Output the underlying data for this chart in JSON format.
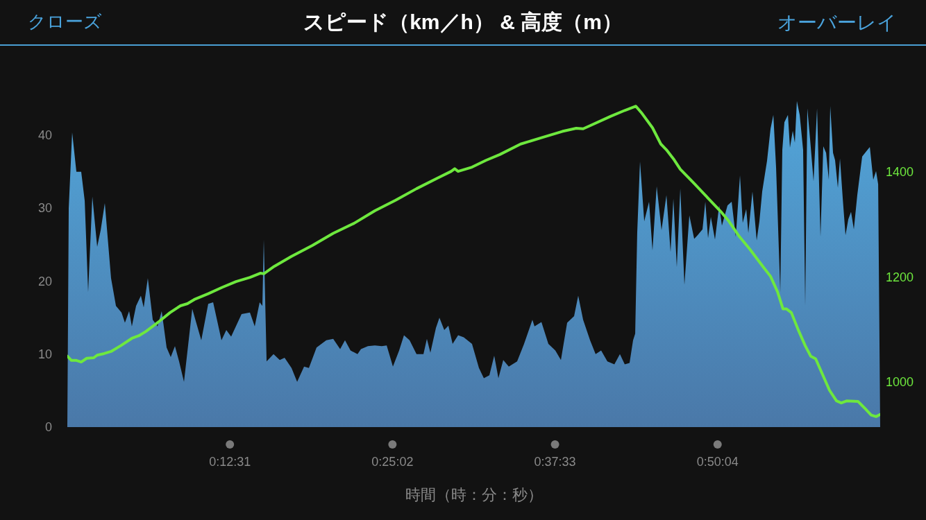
{
  "chart_data": {
    "type": "area",
    "title": "スピード（km／h） & 高度（m）",
    "xlabel": "時間（時：分：秒）",
    "annotations": [
      "クローズ",
      "オーバーレイ"
    ],
    "xlim": [
      0,
      1.0431
    ],
    "xticks": [
      {
        "value": 0.20861,
        "label": "0:12:31"
      },
      {
        "value": 0.41722,
        "label": "0:25:02"
      },
      {
        "value": 0.62583,
        "label": "0:37:33"
      },
      {
        "value": 0.83444,
        "label": "0:50:04"
      }
    ],
    "ylim": [
      0,
      46
    ],
    "yticks": [
      0,
      10,
      20,
      30,
      40
    ],
    "y2lim": [
      914,
      1553
    ],
    "y2ticks": [
      1000,
      1200,
      1400
    ],
    "grid": false,
    "legend": false,
    "marker": "none",
    "series": [
      {
        "type": "area",
        "color": "#52a6da",
        "x": [
          0,
          0.0018,
          0.0062,
          0.0116,
          0.0178,
          0.0223,
          0.0267,
          0.0321,
          0.0383,
          0.0428,
          0.0481,
          0.0561,
          0.0624,
          0.0695,
          0.0739,
          0.0793,
          0.0828,
          0.0882,
          0.0944,
          0.098,
          0.1033,
          0.1096,
          0.1158,
          0.1211,
          0.1274,
          0.1327,
          0.1381,
          0.1434,
          0.1497,
          0.1603,
          0.1719,
          0.1808,
          0.1871,
          0.1978,
          0.204,
          0.2102,
          0.2236,
          0.2343,
          0.2405,
          0.2468,
          0.2503,
          0.2521,
          0.2557,
          0.2646,
          0.2726,
          0.2788,
          0.2877,
          0.2949,
          0.3038,
          0.31,
          0.3198,
          0.3323,
          0.3412,
          0.3501,
          0.3563,
          0.3634,
          0.3724,
          0.3768,
          0.3857,
          0.3946,
          0.4035,
          0.4098,
          0.4178,
          0.4258,
          0.432,
          0.4392,
          0.4481,
          0.457,
          0.4614,
          0.4659,
          0.473,
          0.4775,
          0.4837,
          0.489,
          0.4944,
          0.5015,
          0.5087,
          0.5193,
          0.5282,
          0.5345,
          0.5416,
          0.5478,
          0.5532,
          0.5594,
          0.5665,
          0.5772,
          0.5861,
          0.5968,
          0.5995,
          0.6084,
          0.6173,
          0.6262,
          0.6334,
          0.6414,
          0.6503,
          0.6556,
          0.6619,
          0.6708,
          0.6779,
          0.685,
          0.693,
          0.702,
          0.7091,
          0.7153,
          0.7215,
          0.726,
          0.7287,
          0.7313,
          0.7349,
          0.7403,
          0.7465,
          0.7509,
          0.7563,
          0.7625,
          0.7688,
          0.7741,
          0.7777,
          0.7821,
          0.7866,
          0.7919,
          0.7982,
          0.8044,
          0.8088,
          0.8151,
          0.8187,
          0.8222,
          0.8258,
          0.8311,
          0.8365,
          0.84,
          0.8472,
          0.8525,
          0.8578,
          0.8632,
          0.8667,
          0.8712,
          0.8739,
          0.8792,
          0.8846,
          0.8881,
          0.8917,
          0.8979,
          0.9024,
          0.906,
          0.9095,
          0.9149,
          0.9175,
          0.9202,
          0.9247,
          0.9273,
          0.9309,
          0.9336,
          0.9362,
          0.9398,
          0.9442,
          0.9469,
          0.9496,
          0.9532,
          0.9576,
          0.9621,
          0.9665,
          0.9701,
          0.9737,
          0.9772,
          0.979,
          0.9826,
          0.9852,
          0.9888,
          0.9915,
          0.995,
          0.9986,
          1.0022,
          1.0057,
          1.0093,
          1.0137,
          1.02,
          1.0253,
          1.0298,
          1.0342,
          1.0378,
          1.0405,
          1.0431
        ],
        "values": [
          0,
          30,
          40.4,
          35,
          35,
          31,
          18.5,
          31.6,
          24.7,
          27,
          30.7,
          20.4,
          16.6,
          15.7,
          14.3,
          15.9,
          13.8,
          16.6,
          18,
          16.4,
          20.4,
          14.7,
          13.8,
          15.9,
          10.9,
          9.6,
          11.1,
          9,
          6.2,
          16.2,
          11.9,
          16.9,
          17.1,
          11.9,
          13.3,
          12.4,
          15.5,
          15.7,
          13.8,
          17.1,
          16.6,
          25.7,
          9,
          10,
          9.2,
          9.5,
          8.1,
          6.2,
          8.3,
          8.1,
          10.9,
          11.9,
          12.1,
          10.7,
          11.9,
          10.5,
          10,
          10.7,
          11.1,
          11.2,
          11.1,
          11.2,
          8.3,
          10.5,
          12.6,
          11.9,
          10,
          10,
          12.1,
          10.2,
          13.6,
          15,
          13.3,
          13.9,
          11.4,
          12.6,
          12.3,
          11.4,
          8.1,
          6.7,
          7.1,
          9.8,
          6.7,
          9.2,
          8.3,
          9,
          11.4,
          14.7,
          13.8,
          14.4,
          11.4,
          10.5,
          9.2,
          14.3,
          15.2,
          18,
          14.7,
          11.9,
          10,
          10.5,
          9,
          8.6,
          10,
          8.6,
          8.8,
          11.9,
          12.8,
          26.6,
          36.4,
          28.2,
          30.9,
          24.2,
          33,
          27,
          31.8,
          24,
          31.3,
          21.9,
          32.7,
          19.5,
          29,
          25.8,
          26.3,
          27.1,
          30.9,
          25.9,
          28.8,
          25.7,
          30.4,
          27.6,
          30.4,
          30.9,
          26.1,
          34.5,
          28,
          29.9,
          26.6,
          32.3,
          25.6,
          28.2,
          32.3,
          36.5,
          40.9,
          42.8,
          35.6,
          18.5,
          38,
          41.8,
          42.8,
          38.3,
          40.6,
          39,
          44.7,
          42.8,
          38,
          16.6,
          43.7,
          39.4,
          33.7,
          43.7,
          26.1,
          38.5,
          37.6,
          33.9,
          44,
          37.6,
          36.6,
          32.8,
          36.8,
          31.4,
          26.3,
          28.5,
          29.5,
          27.1,
          31.8,
          37.1,
          37.8,
          38.4,
          33.9,
          35.1,
          33.3,
          0
        ]
      },
      {
        "type": "line",
        "axis": "y2",
        "color": "#6ee83e",
        "x": [
          0,
          0.0053,
          0.0116,
          0.0178,
          0.0249,
          0.0339,
          0.0383,
          0.0472,
          0.0561,
          0.0695,
          0.0828,
          0.0918,
          0.1007,
          0.1096,
          0.1185,
          0.1318,
          0.1452,
          0.1541,
          0.163,
          0.1808,
          0.1986,
          0.2165,
          0.2343,
          0.2476,
          0.2521,
          0.2655,
          0.2877,
          0.3145,
          0.3412,
          0.3679,
          0.3946,
          0.4213,
          0.4481,
          0.4748,
          0.4926,
          0.4971,
          0.5015,
          0.5193,
          0.5372,
          0.555,
          0.5817,
          0.6084,
          0.6351,
          0.653,
          0.6619,
          0.6708,
          0.6975,
          0.7153,
          0.7296,
          0.7376,
          0.7509,
          0.7616,
          0.7688,
          0.7777,
          0.7866,
          0.8044,
          0.8222,
          0.84,
          0.8489,
          0.8623,
          0.8757,
          0.8935,
          0.9024,
          0.9113,
          0.9184,
          0.9229,
          0.9291,
          0.938,
          0.9469,
          0.954,
          0.9603,
          0.9692,
          0.9781,
          0.987,
          0.9932,
          1.0004,
          1.0146,
          1.0226,
          1.0315,
          1.0378,
          1.0431
        ],
        "values": [
          1049,
          1041,
          1041,
          1038,
          1045,
          1046,
          1051,
          1054,
          1058,
          1070,
          1083,
          1088,
          1096,
          1106,
          1116,
          1132,
          1145,
          1149,
          1157,
          1168,
          1180,
          1191,
          1199,
          1207,
          1206,
          1220,
          1239,
          1260,
          1283,
          1302,
          1326,
          1346,
          1368,
          1388,
          1401,
          1406,
          1401,
          1409,
          1422,
          1433,
          1453,
          1465,
          1477,
          1483,
          1482,
          1488,
          1506,
          1517,
          1525,
          1511,
          1484,
          1453,
          1442,
          1425,
          1405,
          1378,
          1350,
          1322,
          1306,
          1277,
          1253,
          1218,
          1201,
          1172,
          1139,
          1139,
          1132,
          1099,
          1069,
          1049,
          1044,
          1014,
          984,
          964,
          960,
          964,
          963,
          951,
          937,
          934,
          938
        ]
      }
    ]
  }
}
